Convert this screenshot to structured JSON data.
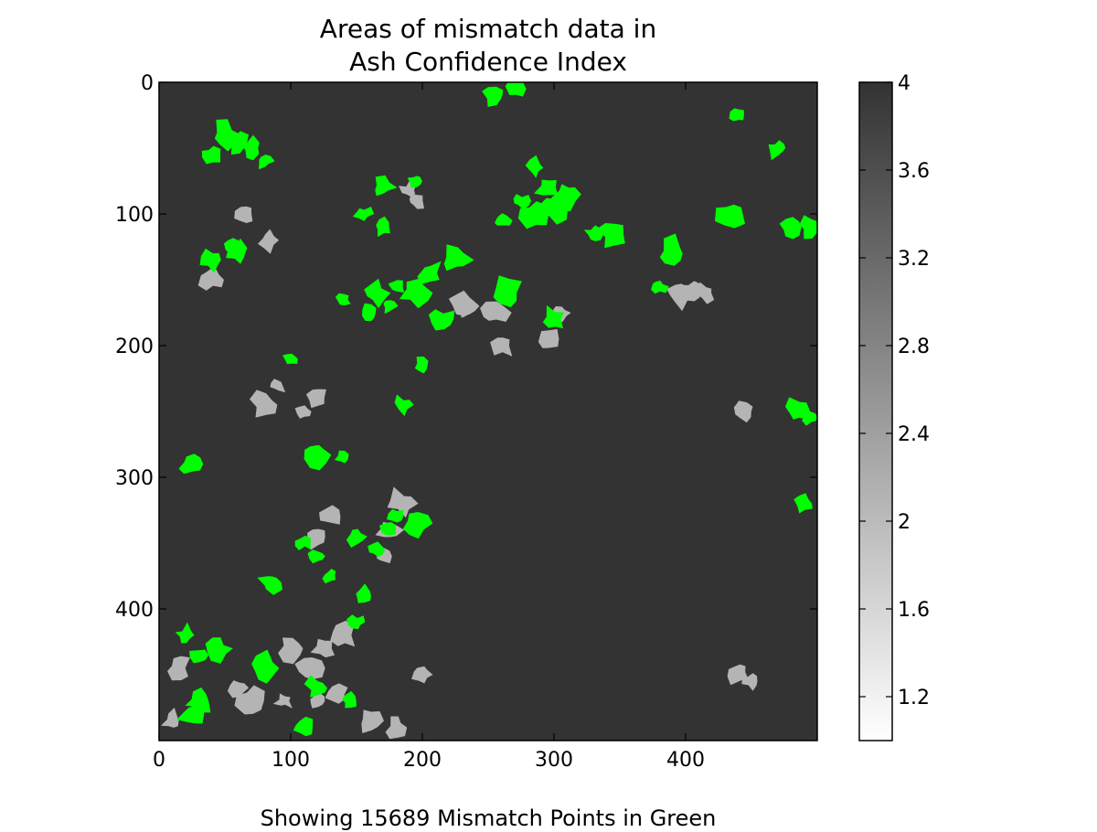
{
  "chart_data": {
    "type": "heatmap",
    "title_lines": [
      "Areas of mismatch data in",
      "Ash Confidence Index"
    ],
    "caption": "Showing 15689 Mismatch Points in Green",
    "x_ticks": [
      "0",
      "100",
      "200",
      "300",
      "400"
    ],
    "y_ticks": [
      "0",
      "100",
      "200",
      "300",
      "400"
    ],
    "xlim": [
      0,
      500
    ],
    "ylim": [
      500,
      0
    ],
    "colorbar": {
      "min": 1,
      "max": 4,
      "ticks": [
        "1.2",
        "1.6",
        "2",
        "2.4",
        "2.8",
        "3.2",
        "3.6",
        "4"
      ],
      "colormap": "grayscale (white → dark gray)"
    },
    "background_value": 4,
    "background_color": "#333333",
    "mismatch_color": "#00ff00",
    "patch_value_color": "#b4b4b4",
    "gray_patches": [
      {
        "x": 235,
        "y": 170
      },
      {
        "x": 260,
        "y": 200
      },
      {
        "x": 305,
        "y": 175
      },
      {
        "x": 295,
        "y": 195
      },
      {
        "x": 255,
        "y": 175
      },
      {
        "x": 80,
        "y": 245
      },
      {
        "x": 90,
        "y": 230
      },
      {
        "x": 110,
        "y": 250
      },
      {
        "x": 120,
        "y": 240
      },
      {
        "x": 230,
        "y": 168
      },
      {
        "x": 395,
        "y": 160
      },
      {
        "x": 405,
        "y": 158
      },
      {
        "x": 415,
        "y": 160
      },
      {
        "x": 83,
        "y": 120
      },
      {
        "x": 65,
        "y": 100
      },
      {
        "x": 40,
        "y": 150
      },
      {
        "x": 195,
        "y": 90
      },
      {
        "x": 190,
        "y": 82
      },
      {
        "x": 175,
        "y": 340
      },
      {
        "x": 170,
        "y": 360
      },
      {
        "x": 115,
        "y": 445
      },
      {
        "x": 125,
        "y": 430
      },
      {
        "x": 140,
        "y": 420
      },
      {
        "x": 135,
        "y": 465
      },
      {
        "x": 95,
        "y": 470
      },
      {
        "x": 15,
        "y": 445
      },
      {
        "x": 10,
        "y": 485
      },
      {
        "x": 100,
        "y": 430
      },
      {
        "x": 120,
        "y": 470
      },
      {
        "x": 160,
        "y": 485
      },
      {
        "x": 180,
        "y": 490
      },
      {
        "x": 200,
        "y": 450
      },
      {
        "x": 440,
        "y": 448
      },
      {
        "x": 450,
        "y": 455
      },
      {
        "x": 445,
        "y": 250
      },
      {
        "x": 130,
        "y": 330
      },
      {
        "x": 120,
        "y": 345
      },
      {
        "x": 185,
        "y": 320
      },
      {
        "x": 60,
        "y": 460
      },
      {
        "x": 70,
        "y": 470
      }
    ],
    "green_patches": [
      {
        "x": 295,
        "y": 80
      },
      {
        "x": 285,
        "y": 65
      },
      {
        "x": 275,
        "y": 90
      },
      {
        "x": 300,
        "y": 95
      },
      {
        "x": 260,
        "y": 105
      },
      {
        "x": 310,
        "y": 85
      },
      {
        "x": 285,
        "y": 100
      },
      {
        "x": 60,
        "y": 45
      },
      {
        "x": 70,
        "y": 50
      },
      {
        "x": 40,
        "y": 55
      },
      {
        "x": 50,
        "y": 40
      },
      {
        "x": 80,
        "y": 60
      },
      {
        "x": 55,
        "y": 125
      },
      {
        "x": 60,
        "y": 130
      },
      {
        "x": 40,
        "y": 135
      },
      {
        "x": 165,
        "y": 160
      },
      {
        "x": 160,
        "y": 175
      },
      {
        "x": 175,
        "y": 170
      },
      {
        "x": 180,
        "y": 155
      },
      {
        "x": 205,
        "y": 145
      },
      {
        "x": 195,
        "y": 160
      },
      {
        "x": 140,
        "y": 165
      },
      {
        "x": 120,
        "y": 360
      },
      {
        "x": 110,
        "y": 350
      },
      {
        "x": 130,
        "y": 375
      },
      {
        "x": 150,
        "y": 345
      },
      {
        "x": 165,
        "y": 355
      },
      {
        "x": 175,
        "y": 340
      },
      {
        "x": 180,
        "y": 330
      },
      {
        "x": 155,
        "y": 390
      },
      {
        "x": 150,
        "y": 410
      },
      {
        "x": 25,
        "y": 290
      },
      {
        "x": 20,
        "y": 420
      },
      {
        "x": 30,
        "y": 435
      },
      {
        "x": 45,
        "y": 430
      },
      {
        "x": 330,
        "y": 115
      },
      {
        "x": 345,
        "y": 115
      },
      {
        "x": 495,
        "y": 255
      },
      {
        "x": 485,
        "y": 250
      },
      {
        "x": 490,
        "y": 320
      },
      {
        "x": 435,
        "y": 100
      },
      {
        "x": 440,
        "y": 25
      },
      {
        "x": 470,
        "y": 50
      },
      {
        "x": 390,
        "y": 130
      },
      {
        "x": 265,
        "y": 160
      },
      {
        "x": 225,
        "y": 135
      },
      {
        "x": 200,
        "y": 215
      },
      {
        "x": 185,
        "y": 245
      },
      {
        "x": 140,
        "y": 285
      },
      {
        "x": 120,
        "y": 283
      },
      {
        "x": 100,
        "y": 210
      },
      {
        "x": 170,
        "y": 80
      },
      {
        "x": 195,
        "y": 75
      },
      {
        "x": 155,
        "y": 100
      },
      {
        "x": 170,
        "y": 110
      },
      {
        "x": 270,
        "y": 5
      },
      {
        "x": 255,
        "y": 10
      },
      {
        "x": 480,
        "y": 110
      },
      {
        "x": 495,
        "y": 110
      },
      {
        "x": 380,
        "y": 155
      },
      {
        "x": 120,
        "y": 460
      },
      {
        "x": 85,
        "y": 380
      },
      {
        "x": 30,
        "y": 470
      },
      {
        "x": 25,
        "y": 480
      },
      {
        "x": 110,
        "y": 490
      },
      {
        "x": 145,
        "y": 470
      },
      {
        "x": 80,
        "y": 445
      },
      {
        "x": 300,
        "y": 180
      },
      {
        "x": 215,
        "y": 180
      },
      {
        "x": 195,
        "y": 335
      }
    ]
  }
}
